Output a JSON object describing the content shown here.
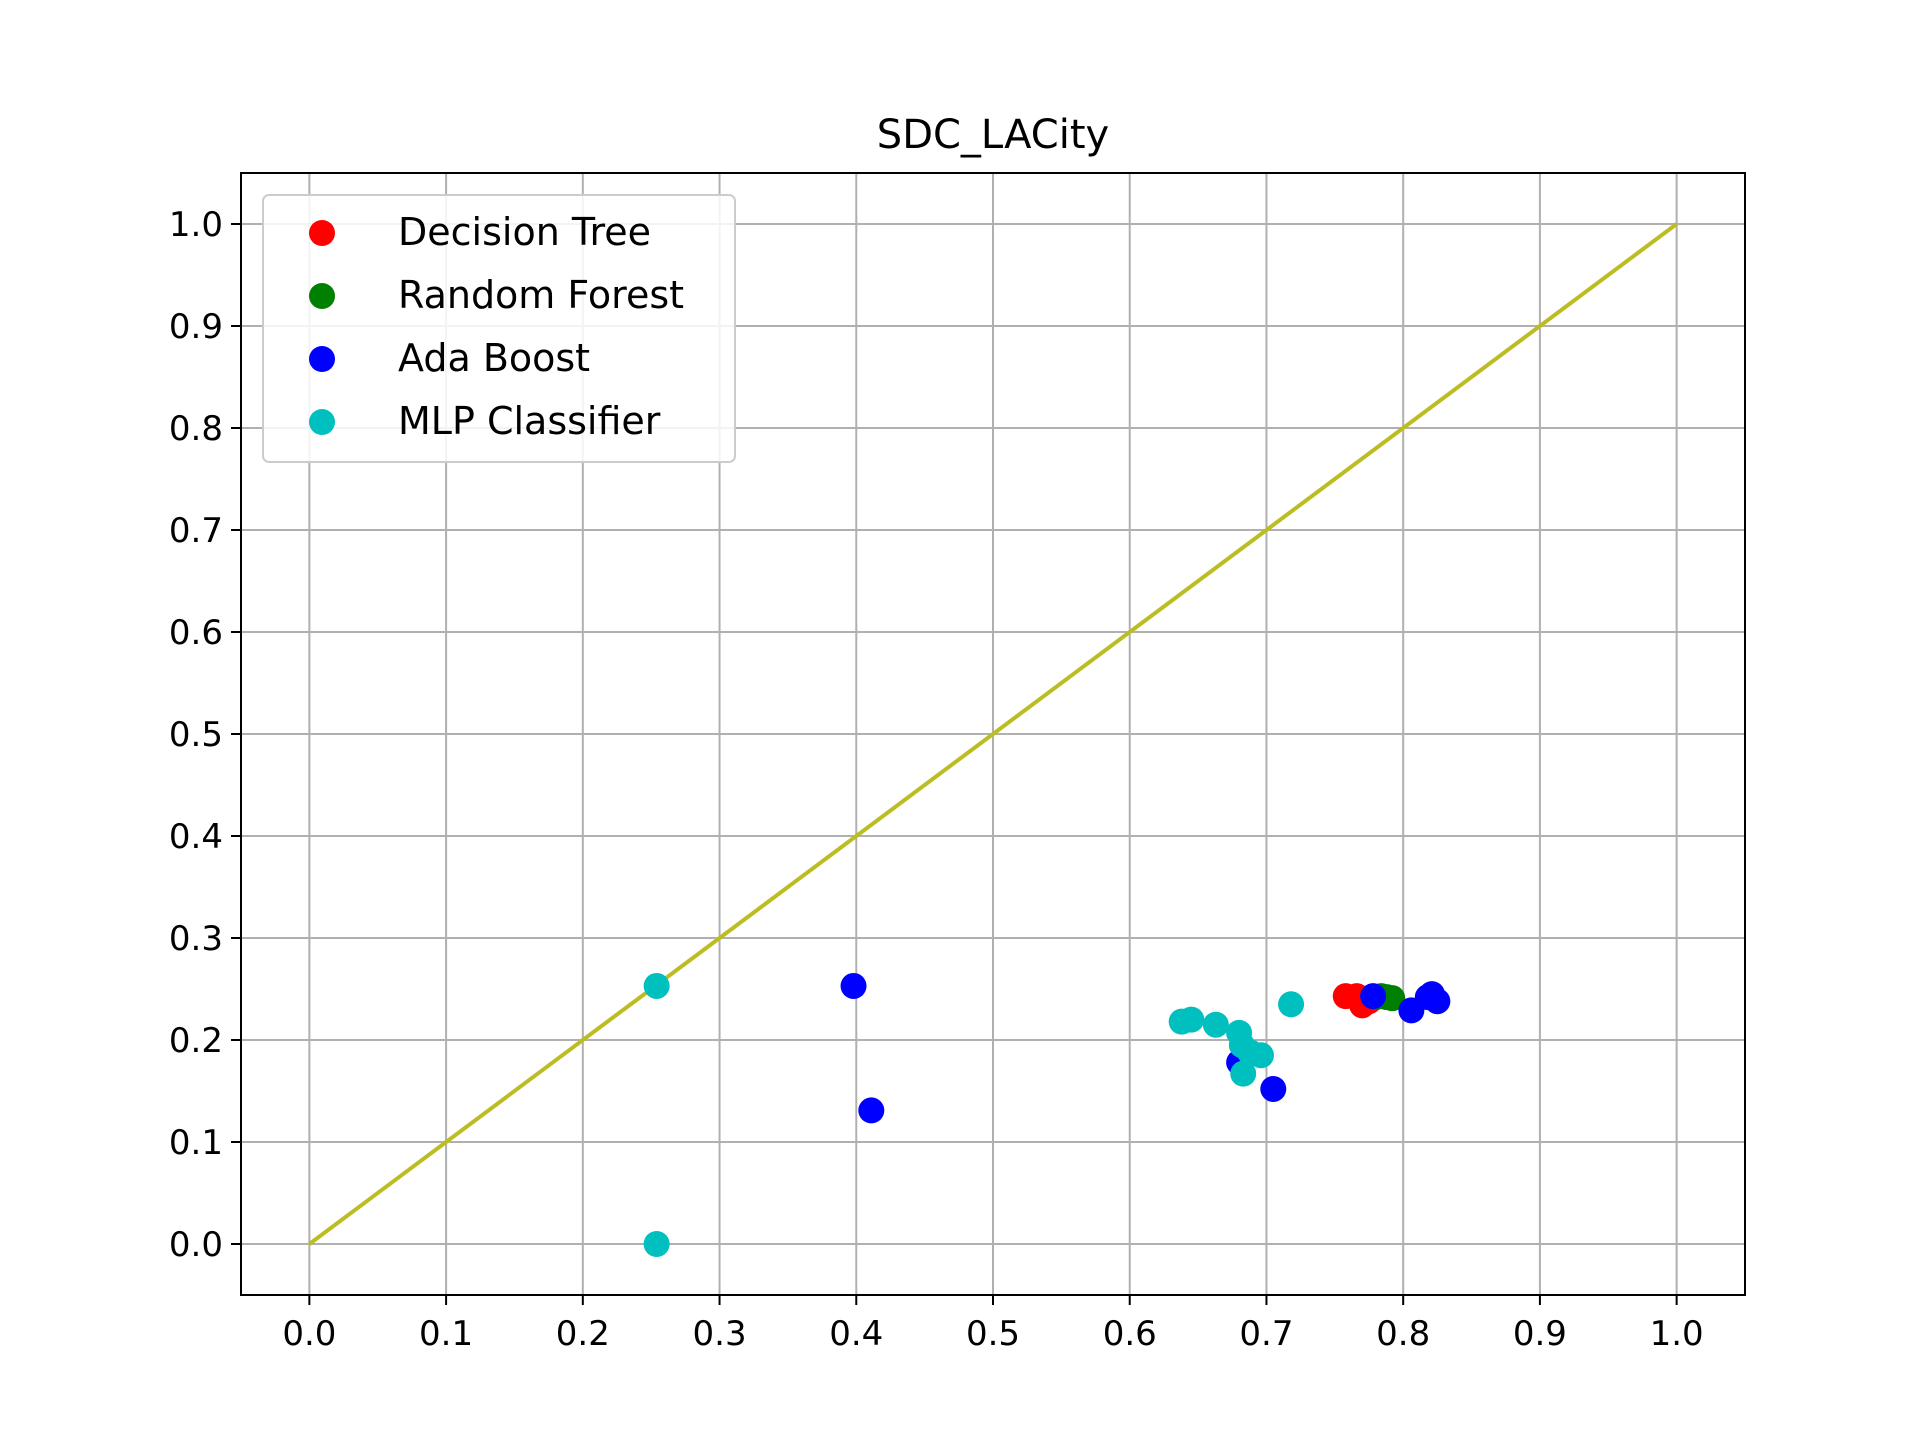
{
  "chart_data": {
    "type": "scatter",
    "title": "SDC_LACity",
    "xlabel": "",
    "ylabel": "",
    "xlim": [
      -0.05,
      1.05
    ],
    "ylim": [
      -0.05,
      1.05
    ],
    "xticks": [
      0.0,
      0.1,
      0.2,
      0.3,
      0.4,
      0.5,
      0.6,
      0.7,
      0.8,
      0.9,
      1.0
    ],
    "yticks": [
      0.0,
      0.1,
      0.2,
      0.3,
      0.4,
      0.5,
      0.6,
      0.7,
      0.8,
      0.9,
      1.0
    ],
    "xtick_labels": [
      "0.0",
      "0.1",
      "0.2",
      "0.3",
      "0.4",
      "0.5",
      "0.6",
      "0.7",
      "0.8",
      "0.9",
      "1.0"
    ],
    "ytick_labels": [
      "0.0",
      "0.1",
      "0.2",
      "0.3",
      "0.4",
      "0.5",
      "0.6",
      "0.7",
      "0.8",
      "0.9",
      "1.0"
    ],
    "grid": true,
    "legend_position": "top-left",
    "series": [
      {
        "name": "Decision Tree",
        "color": "#ff0000",
        "points": [
          [
            0.758,
            0.243
          ],
          [
            0.766,
            0.243
          ],
          [
            0.77,
            0.234
          ],
          [
            0.775,
            0.238
          ]
        ]
      },
      {
        "name": "Random Forest",
        "color": "#008000",
        "points": [
          [
            0.78,
            0.242
          ],
          [
            0.784,
            0.243
          ],
          [
            0.788,
            0.242
          ],
          [
            0.792,
            0.241
          ]
        ]
      },
      {
        "name": "Ada Boost",
        "color": "#0000ff",
        "points": [
          [
            0.398,
            0.253
          ],
          [
            0.411,
            0.131
          ],
          [
            0.68,
            0.178
          ],
          [
            0.705,
            0.152
          ],
          [
            0.778,
            0.243
          ],
          [
            0.806,
            0.229
          ],
          [
            0.818,
            0.242
          ],
          [
            0.821,
            0.245
          ],
          [
            0.825,
            0.238
          ]
        ]
      },
      {
        "name": "MLP Classifier",
        "color": "#00bfbf",
        "points": [
          [
            0.254,
            0.253
          ],
          [
            0.254,
            0.0
          ],
          [
            0.638,
            0.218
          ],
          [
            0.645,
            0.22
          ],
          [
            0.663,
            0.215
          ],
          [
            0.68,
            0.207
          ],
          [
            0.682,
            0.195
          ],
          [
            0.683,
            0.167
          ],
          [
            0.688,
            0.188
          ],
          [
            0.696,
            0.185
          ],
          [
            0.718,
            0.235
          ]
        ]
      }
    ],
    "reference_line": {
      "color": "#bcbd22",
      "points": [
        [
          0.0,
          0.0
        ],
        [
          1.0,
          1.0
        ]
      ]
    }
  }
}
